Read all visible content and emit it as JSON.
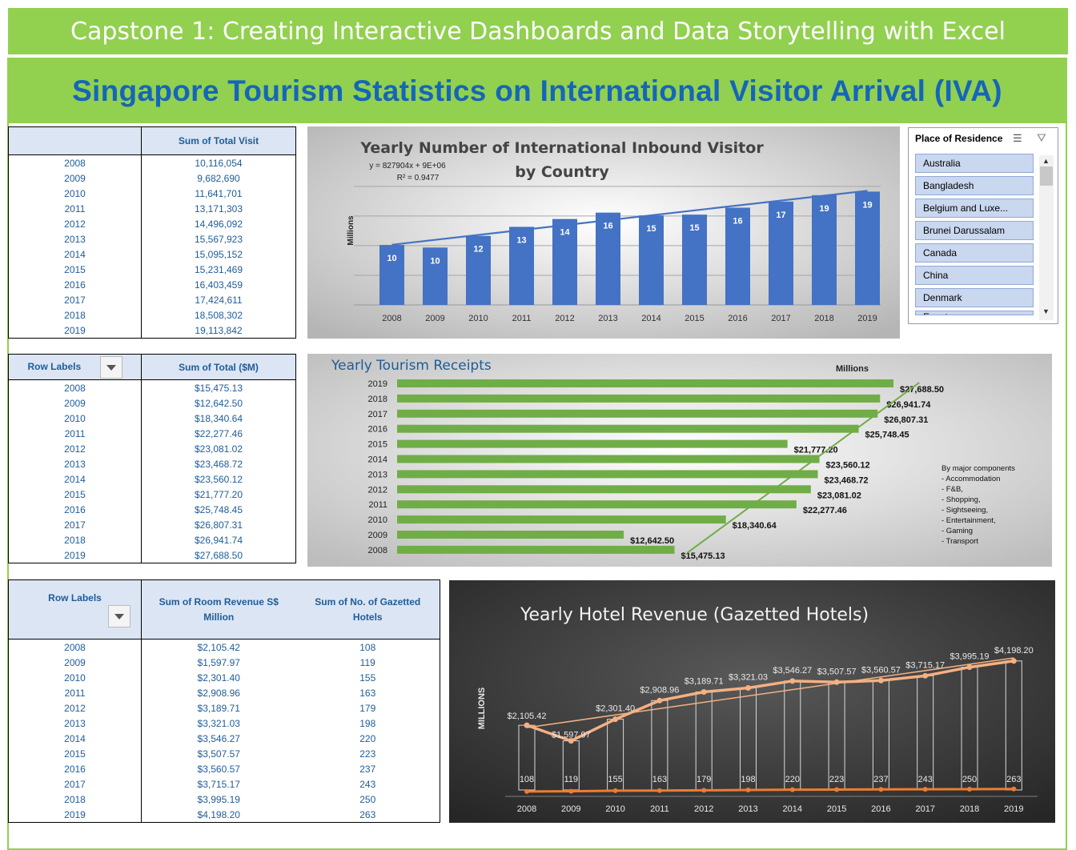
{
  "banner": {
    "title": "Capstone 1: Creating Interactive Dashboards and Data Storytelling with Excel"
  },
  "header": {
    "title": "Singapore Tourism Statistics on International Visitor Arrival (IVA)"
  },
  "colors": {
    "green": "#92d050",
    "blue_title": "#1566b8",
    "table_text": "#1f5c99",
    "bar_blue": "#4472c4",
    "bar_green": "#70ad47",
    "hotel_line": "#f4b183",
    "gazetted_line": "#ed7d31"
  },
  "pivot1": {
    "col1": "",
    "col2": "Sum of Total Visit",
    "rows": [
      [
        "2008",
        "10,116,054"
      ],
      [
        "2009",
        "9,682,690"
      ],
      [
        "2010",
        "11,641,701"
      ],
      [
        "2011",
        "13,171,303"
      ],
      [
        "2012",
        "14,496,092"
      ],
      [
        "2013",
        "15,567,923"
      ],
      [
        "2014",
        "15,095,152"
      ],
      [
        "2015",
        "15,231,469"
      ],
      [
        "2016",
        "16,403,459"
      ],
      [
        "2017",
        "17,424,611"
      ],
      [
        "2018",
        "18,508,302"
      ],
      [
        "2019",
        "19,113,842"
      ]
    ]
  },
  "pivot2": {
    "col1": "Row Labels",
    "col2": "Sum of Total  ($M)",
    "rows": [
      [
        "2008",
        "$15,475.13"
      ],
      [
        "2009",
        "$12,642.50"
      ],
      [
        "2010",
        "$18,340.64"
      ],
      [
        "2011",
        "$22,277.46"
      ],
      [
        "2012",
        "$23,081.02"
      ],
      [
        "2013",
        "$23,468.72"
      ],
      [
        "2014",
        "$23,560.12"
      ],
      [
        "2015",
        "$21,777.20"
      ],
      [
        "2016",
        "$25,748.45"
      ],
      [
        "2017",
        "$26,807.31"
      ],
      [
        "2018",
        "$26,941.74"
      ],
      [
        "2019",
        "$27,688.50"
      ]
    ]
  },
  "pivot3": {
    "col1": "Row Labels",
    "col2": "Sum of Room Revenue S$ Million",
    "col3": "Sum of No. of Gazetted Hotels",
    "rows": [
      [
        "2008",
        "$2,105.42",
        "108"
      ],
      [
        "2009",
        "$1,597.97",
        "119"
      ],
      [
        "2010",
        "$2,301.40",
        "155"
      ],
      [
        "2011",
        "$2,908.96",
        "163"
      ],
      [
        "2012",
        "$3,189.71",
        "179"
      ],
      [
        "2013",
        "$3,321.03",
        "198"
      ],
      [
        "2014",
        "$3,546.27",
        "220"
      ],
      [
        "2015",
        "$3,507.57",
        "223"
      ],
      [
        "2016",
        "$3,560.57",
        "237"
      ],
      [
        "2017",
        "$3,715.17",
        "243"
      ],
      [
        "2018",
        "$3,995.19",
        "250"
      ],
      [
        "2019",
        "$4,198.20",
        "263"
      ]
    ]
  },
  "slicer": {
    "title": "Place of Residence",
    "items": [
      "Australia",
      "Bangladesh",
      "Belgium and Luxe...",
      "Brunei Darussalam",
      "Canada",
      "China",
      "Denmark",
      "Egypt"
    ]
  },
  "chart_data": [
    {
      "type": "bar",
      "title": "Yearly Number of International Inbound Visitor by Country",
      "ylabel": "Millions",
      "xlabel": "",
      "trendline_equation": "y = 827904x + 9E+06",
      "r_squared": "R² = 0.9477",
      "categories": [
        "2008",
        "2009",
        "2010",
        "2011",
        "2012",
        "2013",
        "2014",
        "2015",
        "2016",
        "2017",
        "2018",
        "2019"
      ],
      "values": [
        10.116054,
        9.68269,
        11.641701,
        13.171303,
        14.496092,
        15.567923,
        15.095152,
        15.231469,
        16.403459,
        17.424611,
        18.508302,
        19.113842
      ],
      "labels": [
        "10",
        "10",
        "12",
        "13",
        "14",
        "16",
        "15",
        "15",
        "16",
        "17",
        "19",
        "19"
      ],
      "ylim": [
        0,
        22
      ],
      "grid": true,
      "trendline": "linear"
    },
    {
      "type": "bar",
      "orientation": "horizontal",
      "title": "Yearly Tourism Receipts",
      "units_label": "Millions",
      "categories": [
        "2008",
        "2009",
        "2010",
        "2011",
        "2012",
        "2013",
        "2014",
        "2015",
        "2016",
        "2017",
        "2018",
        "2019"
      ],
      "values": [
        15475.13,
        12642.5,
        18340.64,
        22277.46,
        23081.02,
        23468.72,
        23560.12,
        21777.2,
        25748.45,
        26807.31,
        26941.74,
        27688.5
      ],
      "labels": [
        "$15,475.13",
        "$12,642.50",
        "$18,340.64",
        "$22,277.46",
        "$23,081.02",
        "$23,468.72",
        "$23,560.12",
        "$21,777.20",
        "$25,748.45",
        "$26,807.31",
        "$26,941.74",
        "$27,688.50"
      ],
      "xlim": [
        0,
        30000
      ],
      "trendline": "linear",
      "annotation": [
        "By major components",
        "- Accommodation",
        "- F&B,",
        "- Shopping,",
        "- Sightseeing,",
        "- Entertainment,",
        "- Gaming",
        "- Transport"
      ]
    },
    {
      "type": "line",
      "title": "Yearly Hotel Revenue (Gazetted Hotels)",
      "ylabel": "MILLIONS",
      "categories": [
        "2008",
        "2009",
        "2010",
        "2011",
        "2012",
        "2013",
        "2014",
        "2015",
        "2016",
        "2017",
        "2018",
        "2019"
      ],
      "series": [
        {
          "name": "Sum of Room Revenue S$ Million",
          "values": [
            2105.42,
            1597.97,
            2301.4,
            2908.96,
            3189.71,
            3321.03,
            3546.27,
            3507.57,
            3560.57,
            3715.17,
            3995.19,
            4198.2
          ],
          "labels": [
            "$2,105.42",
            "$1,597.97",
            "$2,301.40",
            "$2,908.96",
            "$3,189.71",
            "$3,321.03",
            "$3,546.27",
            "$3,507.57",
            "$3,560.57",
            "$3,715.17",
            "$3,995.19",
            "$4,198.20"
          ]
        },
        {
          "name": "Sum of No. of Gazetted Hotels",
          "values": [
            108,
            119,
            155,
            163,
            179,
            198,
            220,
            223,
            237,
            243,
            250,
            263
          ],
          "labels": [
            "108",
            "119",
            "155",
            "163",
            "179",
            "198",
            "220",
            "223",
            "237",
            "243",
            "250",
            "263"
          ]
        }
      ],
      "ylim": [
        0,
        5000
      ],
      "dark_background": true,
      "trendline": "linear"
    }
  ]
}
